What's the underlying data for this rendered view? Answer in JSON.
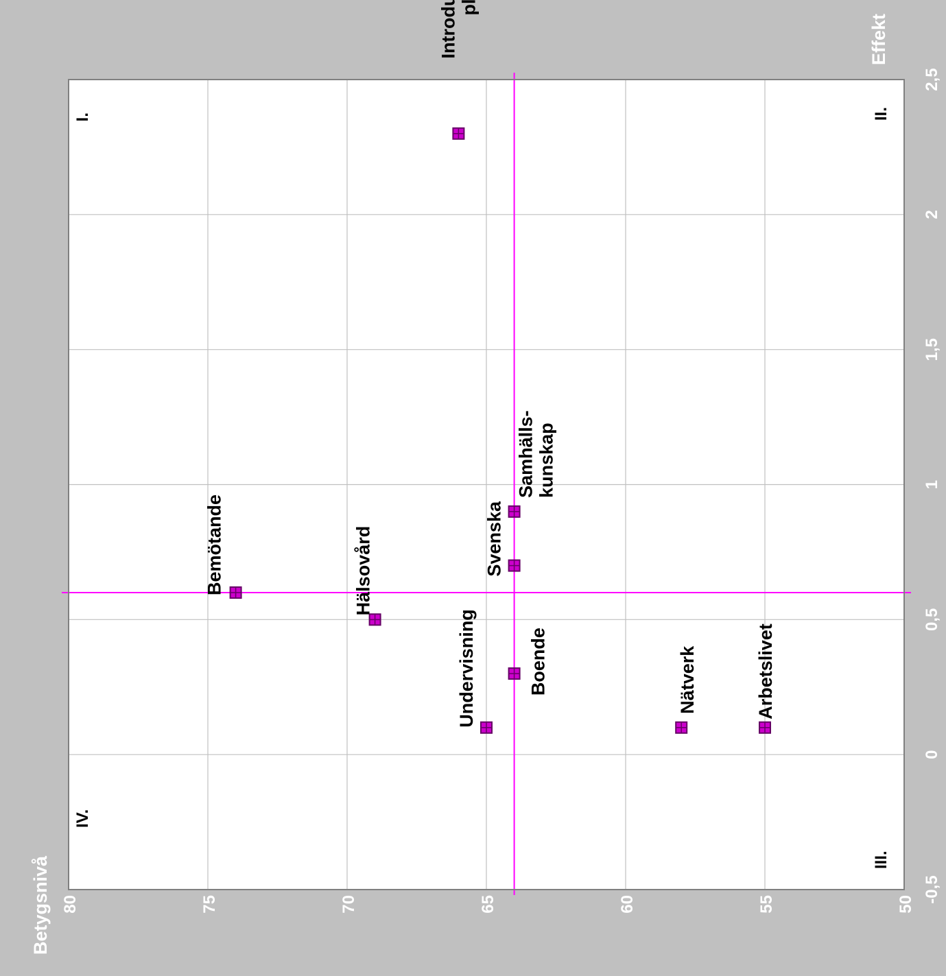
{
  "chart_data": {
    "type": "scatter",
    "title": "",
    "xlabel": "Betygsnivå",
    "ylabel": "Effekt",
    "xlim": [
      80,
      50
    ],
    "ylim": [
      -0.5,
      2.5
    ],
    "x_ticks": [
      "80",
      "75",
      "70",
      "65",
      "60",
      "55",
      "50"
    ],
    "x_tick_values": [
      80,
      75,
      70,
      65,
      60,
      55,
      50
    ],
    "y_ticks": [
      "-0,5",
      "0",
      "0,5",
      "1",
      "1,5",
      "2",
      "2,5"
    ],
    "y_tick_values": [
      -0.5,
      0,
      0.5,
      1,
      1.5,
      2,
      2.5
    ],
    "grid": true,
    "reference_lines": {
      "x": 64,
      "y": 0.6,
      "color": "#ff00ff"
    },
    "quadrants": [
      {
        "label": "I.",
        "position": "top-left"
      },
      {
        "label": "II.",
        "position": "top-right"
      },
      {
        "label": "III.",
        "position": "bottom-right"
      },
      {
        "label": "IV.",
        "position": "bottom-left"
      }
    ],
    "points": [
      {
        "label": [
          "Introduktions-",
          "plan"
        ],
        "x": 66,
        "y": 2.3
      },
      {
        "label": [
          "Bemötande"
        ],
        "x": 74,
        "y": 0.6
      },
      {
        "label": [
          "Hälsovård"
        ],
        "x": 69,
        "y": 0.5
      },
      {
        "label": [
          "Svenska"
        ],
        "x": 64,
        "y": 0.7
      },
      {
        "label": [
          "Samhälls-",
          "kunskap"
        ],
        "x": 64,
        "y": 0.9
      },
      {
        "label": [
          "Undervisning"
        ],
        "x": 65,
        "y": 0.1
      },
      {
        "label": [
          "Boende"
        ],
        "x": 64,
        "y": 0.3
      },
      {
        "label": [
          "Nätverk"
        ],
        "x": 58,
        "y": 0.1
      },
      {
        "label": [
          "Arbetslivet"
        ],
        "x": 55,
        "y": 0.1
      }
    ]
  },
  "colors": {
    "background": "#c0c0c0",
    "plot_area": "#ffffff",
    "grid": "#c0c0c0",
    "reference": "#ff00ff",
    "marker_fill": "#cc00cc",
    "marker_dark": "#660066",
    "axis_text": "#ffffff",
    "label_text": "#000000"
  }
}
